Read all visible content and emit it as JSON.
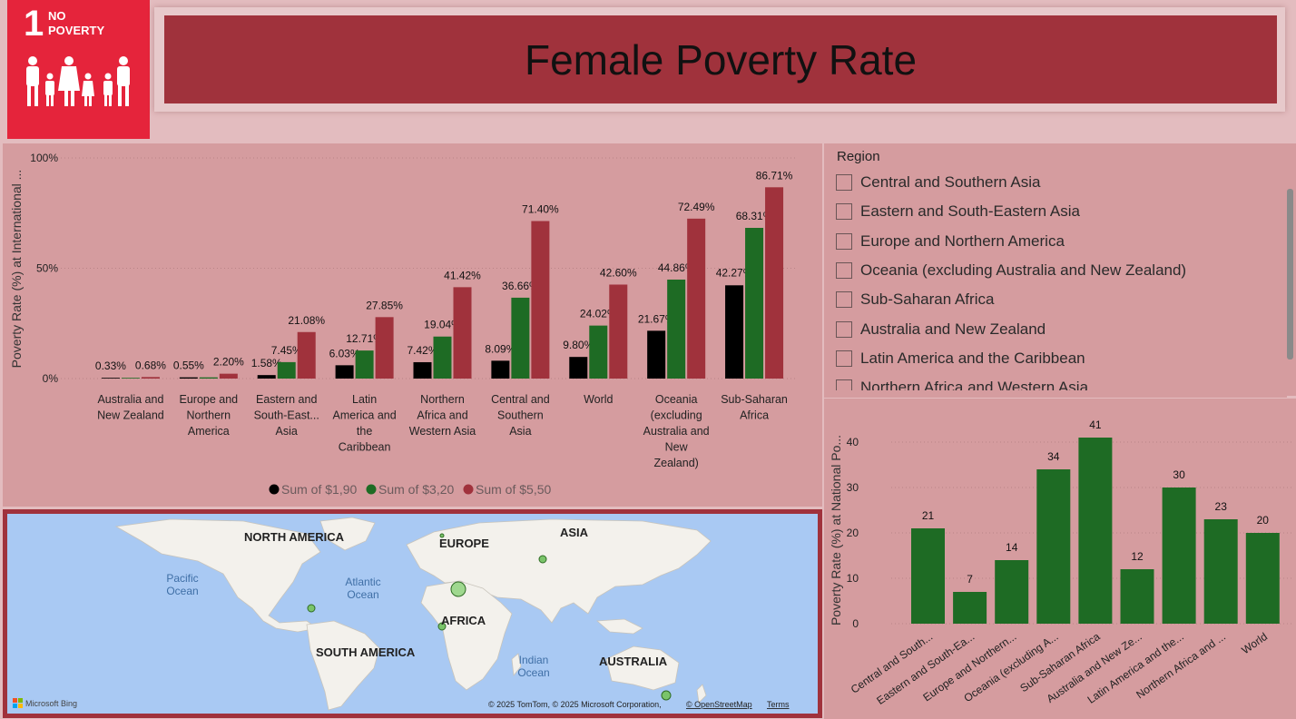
{
  "sdg": {
    "number": "1",
    "line1": "NO",
    "line2": "POVERTY",
    "icon": "family-icon",
    "color": "#e5243b"
  },
  "header": {
    "title": "Female Poverty Rate",
    "color": "#a0323c"
  },
  "colors": {
    "black": "#000000",
    "green": "#1e6b24",
    "red": "#a0323c"
  },
  "chart_data": [
    {
      "type": "bar",
      "title": "",
      "ylabel": "Poverty Rate (%) at International ...",
      "xlabel": "",
      "ylim": [
        0,
        100
      ],
      "yticks": [
        "0%",
        "50%",
        "100%"
      ],
      "categories": [
        [
          "Australia and",
          "New Zealand"
        ],
        [
          "Europe and",
          "Northern",
          "America"
        ],
        [
          "Eastern and",
          "South-East...",
          "Asia"
        ],
        [
          "Latin",
          "America and",
          "the",
          "Caribbean"
        ],
        [
          "Northern",
          "Africa and",
          "Western Asia"
        ],
        [
          "Central and",
          "Southern",
          "Asia"
        ],
        [
          "World"
        ],
        [
          "Oceania",
          "(excluding",
          "Australia and",
          "New",
          "Zealand)"
        ],
        [
          "Sub-Saharan",
          "Africa"
        ]
      ],
      "series": [
        {
          "name": "Sum of $1,90",
          "color": "#000000",
          "values": [
            0.33,
            0.55,
            1.58,
            6.03,
            7.42,
            8.09,
            9.8,
            21.67,
            42.27
          ],
          "labels": [
            "0.33%",
            "0.55%",
            "1.58%",
            "6.03%",
            "7.42%",
            "8.09%",
            "9.80%",
            "21.67%",
            "42.27%"
          ]
        },
        {
          "name": "Sum of $3,20",
          "color": "#1e6b24",
          "values": [
            0.33,
            0.55,
            7.45,
            12.71,
            19.04,
            36.66,
            24.02,
            44.86,
            68.31
          ],
          "labels": [
            "",
            "",
            "7.45%",
            "12.71%",
            "19.04%",
            "36.66%",
            "24.02%",
            "44.86%",
            "68.31%"
          ]
        },
        {
          "name": "Sum of $5,50",
          "color": "#a0323c",
          "values": [
            0.68,
            2.2,
            21.08,
            27.85,
            41.42,
            71.4,
            42.6,
            72.49,
            86.71
          ],
          "labels": [
            "0.68%",
            "2.20%",
            "21.08%",
            "27.85%",
            "41.42%",
            "71.40%",
            "42.60%",
            "72.49%",
            "86.71%"
          ]
        }
      ],
      "legend_position": "bottom-center",
      "grid": true
    },
    {
      "type": "bar",
      "title": "",
      "ylabel": "Poverty Rate (%) at National Po...",
      "xlabel": "",
      "ylim": [
        0,
        45
      ],
      "yticks": [
        "0",
        "10",
        "20",
        "30",
        "40"
      ],
      "categories": [
        "Central and South...",
        "Eastern and South-Ea...",
        "Europe and Northern...",
        "Oceania (excluding A...",
        "Sub-Saharan Africa",
        "Australia and New Ze...",
        "Latin America and the...",
        "Northern Africa and ...",
        "World"
      ],
      "series": [
        {
          "name": "",
          "color": "#1e6b24",
          "values": [
            21,
            7,
            14,
            34,
            41,
            12,
            30,
            23,
            20
          ],
          "labels": [
            "21",
            "7",
            "14",
            "34",
            "41",
            "12",
            "30",
            "23",
            "20"
          ]
        }
      ],
      "grid": true
    }
  ],
  "slicer": {
    "title": "Region",
    "items": [
      "Central and Southern Asia",
      "Eastern and South-Eastern Asia",
      "Europe and Northern America",
      "Oceania (excluding Australia and New Zealand)",
      "Sub-Saharan Africa",
      "Australia and New Zealand",
      "Latin America and the Caribbean",
      "Northern Africa and Western Asia"
    ]
  },
  "map": {
    "labels": {
      "north_america": "NORTH AMERICA",
      "europe": "EUROPE",
      "asia": "ASIA",
      "africa": "AFRICA",
      "south_america": "SOUTH AMERICA",
      "australia": "AUSTRALIA",
      "pacific": [
        "Pacific",
        "Ocean"
      ],
      "atlantic": [
        "Atlantic",
        "Ocean"
      ],
      "indian": [
        "Indian",
        "Ocean"
      ]
    },
    "bing": "Microsoft Bing",
    "copyright": "© 2025 TomTom, © 2025 Microsoft Corporation,",
    "osm": "© OpenStreetMap",
    "terms": "Terms",
    "water_color": "#a9c9f3",
    "land_color": "#f3f1ec",
    "bubble_color": "#8fd07f"
  }
}
